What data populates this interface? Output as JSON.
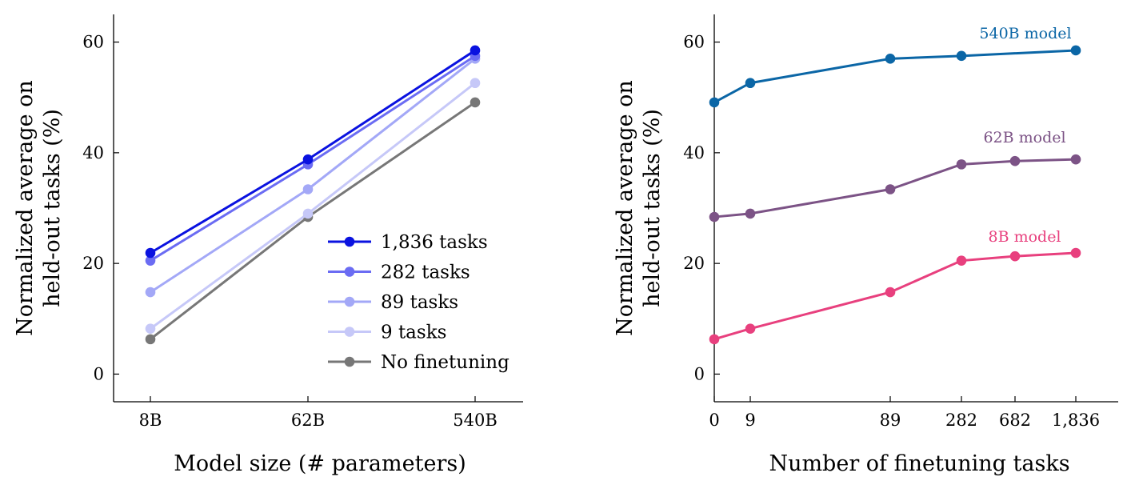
{
  "chart_data": [
    {
      "type": "line",
      "xlabel": "Model size (# parameters)",
      "ylabel": [
        "Normalized average on",
        "held-out tasks (%)"
      ],
      "categories": [
        "8B",
        "62B",
        "540B"
      ],
      "ylim": [
        -5,
        65
      ],
      "yticks": [
        0,
        20,
        40,
        60
      ],
      "grid": false,
      "legend_position": "bottom-right",
      "series": [
        {
          "name": "1,836 tasks",
          "color": "#0a12e0",
          "values": [
            21.9,
            38.8,
            58.5
          ]
        },
        {
          "name": "282 tasks",
          "color": "#6b6cf3",
          "values": [
            20.5,
            37.9,
            57.5
          ]
        },
        {
          "name": "89 tasks",
          "color": "#a3a8f7",
          "values": [
            14.8,
            33.4,
            57.0
          ]
        },
        {
          "name": "9 tasks",
          "color": "#c6c8f8",
          "values": [
            8.2,
            29.0,
            52.6
          ]
        },
        {
          "name": "No finetuning",
          "color": "#777777",
          "values": [
            6.3,
            28.4,
            49.1
          ]
        }
      ]
    },
    {
      "type": "line",
      "xlabel": "Number of finetuning tasks",
      "ylabel": [
        "Normalized average on",
        "held-out tasks (%)"
      ],
      "x": [
        0,
        9,
        89,
        282,
        682,
        1836
      ],
      "xtick_labels": [
        "0",
        "9",
        "89",
        "282",
        "682",
        "1,836"
      ],
      "ylim": [
        -5,
        65
      ],
      "yticks": [
        0,
        20,
        40,
        60
      ],
      "grid": false,
      "series": [
        {
          "name": "540B model",
          "color": "#0b66a6",
          "x": [
            0,
            9,
            89,
            282,
            1836
          ],
          "values": [
            49.1,
            52.6,
            57.0,
            57.5,
            58.5
          ]
        },
        {
          "name": "62B model",
          "color": "#7c5386",
          "x": [
            0,
            9,
            89,
            282,
            682,
            1836
          ],
          "values": [
            28.4,
            29.0,
            33.4,
            37.9,
            38.5,
            38.8
          ]
        },
        {
          "name": "8B model",
          "color": "#e8407e",
          "x": [
            0,
            9,
            89,
            282,
            682,
            1836
          ],
          "values": [
            6.3,
            8.2,
            14.8,
            20.5,
            21.3,
            21.9
          ]
        }
      ]
    }
  ]
}
